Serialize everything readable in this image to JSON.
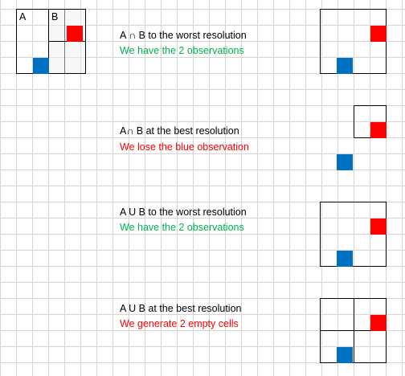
{
  "colors": {
    "red": "#ff0000",
    "blue": "#0070c0",
    "green": "#00b050",
    "loss": "#ff0000",
    "grid": "#d4d4d4"
  },
  "top_left": {
    "label_a": "A",
    "label_b": "B"
  },
  "rows": [
    {
      "title": "A ∩ B to the worst resolution",
      "note": "We have the 2 observations",
      "note_color": "green"
    },
    {
      "title": "A∩ B at the best resolution",
      "note": "We lose the blue observation",
      "note_color": "red"
    },
    {
      "title": "A U B  to the worst resolution",
      "note": "We have the 2 observations",
      "note_color": "green"
    },
    {
      "title": "A U B at the best resolution",
      "note": "We generate 2 empty cells",
      "note_color": "red"
    }
  ]
}
